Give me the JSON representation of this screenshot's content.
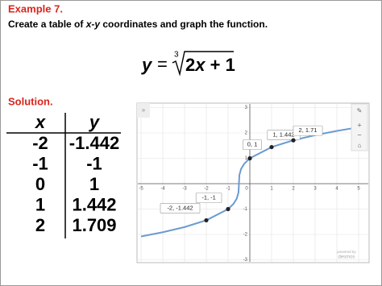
{
  "header": {
    "example": "Example 7.",
    "instruction": [
      "Create a table of ",
      "x-y",
      " coordinates and graph the function."
    ],
    "equation": {
      "lhs": "y",
      "eq": "=",
      "index": "3",
      "radicand": [
        "2",
        "x",
        " + 1"
      ]
    }
  },
  "solution": "Solution.",
  "table": {
    "header": [
      "x",
      "y"
    ],
    "rows": [
      [
        "-2",
        "-1.442"
      ],
      [
        "-1",
        "-1"
      ],
      [
        "0",
        "1"
      ],
      [
        "1",
        "1.442"
      ],
      [
        "2",
        "1.709"
      ]
    ]
  },
  "graph": {
    "xlim": [
      -5,
      5
    ],
    "ylim": [
      -3,
      3
    ],
    "xticks": [
      -5,
      -4,
      -3,
      -2,
      -1,
      0,
      1,
      2,
      3,
      4,
      5
    ],
    "yticks": [
      -3,
      -2,
      -1,
      0,
      1,
      2,
      3
    ],
    "grid": true,
    "curve": {
      "color": "#6b9bd1",
      "x": [
        -5,
        -4,
        -3,
        -2,
        -1,
        -0.75,
        -0.6,
        -0.52,
        -0.5,
        -0.48,
        -0.4,
        -0.25,
        0,
        1,
        2,
        3,
        4,
        5
      ],
      "y": [
        -2.08,
        -1.913,
        -1.71,
        -1.442,
        -1,
        -0.794,
        -0.585,
        -0.342,
        0,
        0.342,
        0.585,
        0.794,
        1,
        1.442,
        1.71,
        1.913,
        2.08,
        2.224
      ]
    },
    "points": [
      {
        "x": -2,
        "y": -1.442,
        "label": "-2, -1.442"
      },
      {
        "x": -1,
        "y": -1,
        "label": "-1, -1"
      },
      {
        "x": 0,
        "y": 1,
        "label": "0, 1"
      },
      {
        "x": 1,
        "y": 1.442,
        "label": "1, 1.442"
      },
      {
        "x": 2,
        "y": 1.71,
        "label": "2, 1.71"
      }
    ],
    "watermark": [
      "powered by",
      "desmos"
    ]
  }
}
